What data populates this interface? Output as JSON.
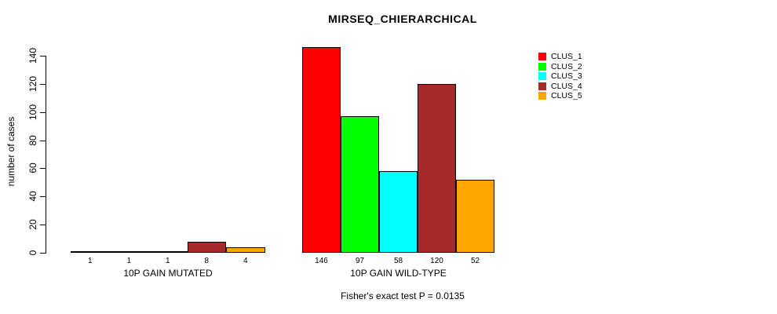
{
  "chart_data": {
    "type": "bar",
    "title": "MIRSEQ_CHIERARCHICAL",
    "ylabel": "number of cases",
    "ylim": [
      0,
      140
    ],
    "yticks": [
      0,
      20,
      40,
      60,
      80,
      100,
      120,
      140
    ],
    "grid": false,
    "legend_position": "top-right",
    "categories": [
      "10P GAIN MUTATED",
      "10P GAIN WILD-TYPE"
    ],
    "series": [
      {
        "name": "CLUS_1",
        "color": "#ff0000",
        "values": [
          1,
          146
        ]
      },
      {
        "name": "CLUS_2",
        "color": "#00ff00",
        "values": [
          1,
          97
        ]
      },
      {
        "name": "CLUS_3",
        "color": "#00ffff",
        "values": [
          1,
          58
        ]
      },
      {
        "name": "CLUS_4",
        "color": "#a52a2a",
        "values": [
          8,
          120
        ]
      },
      {
        "name": "CLUS_5",
        "color": "#ffa500",
        "values": [
          4,
          52
        ]
      }
    ],
    "bar_value_labels": {
      "10P GAIN MUTATED": [
        1,
        1,
        1,
        8,
        4
      ],
      "10P GAIN WILD-TYPE": [
        146,
        97,
        58,
        120,
        52
      ]
    },
    "footnote": "Fisher's exact test P = 0.0135"
  }
}
